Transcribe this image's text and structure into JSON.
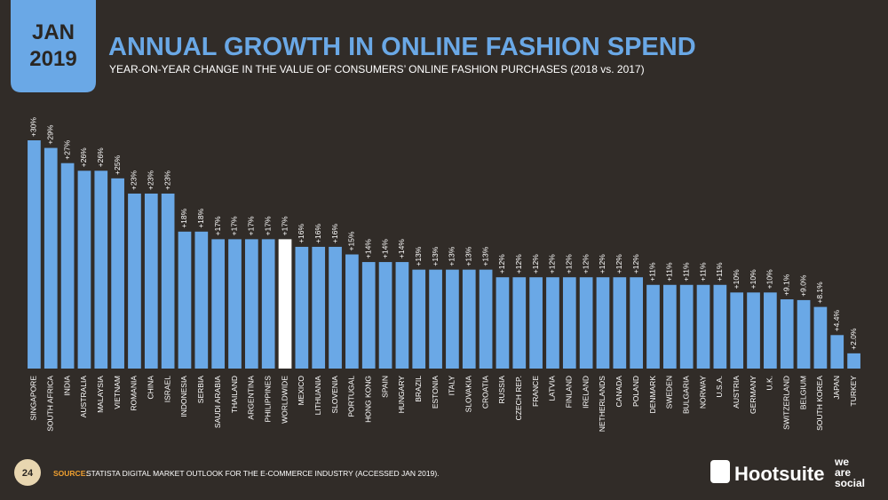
{
  "badge": {
    "month": "JAN",
    "year": "2019"
  },
  "chart_data": {
    "type": "bar",
    "title": "ANNUAL GROWTH IN ONLINE FASHION SPEND",
    "subtitle": "YEAR-ON-YEAR CHANGE IN THE VALUE OF CONSUMERS’ ONLINE FASHION PURCHASES (2018 vs. 2017)",
    "categories": [
      "SINGAPORE",
      "SOUTH AFRICA",
      "INDIA",
      "AUSTRALIA",
      "MALAYSIA",
      "VIETNAM",
      "ROMANIA",
      "CHINA",
      "ISRAEL",
      "INDONESIA",
      "SERBIA",
      "SAUDI ARABIA",
      "THAILAND",
      "ARGENTINA",
      "PHILIPPINES",
      "WORLDWIDE",
      "MEXICO",
      "LITHUANIA",
      "SLOVENIA",
      "PORTUGAL",
      "HONG KONG",
      "SPAIN",
      "HUNGARY",
      "BRAZIL",
      "ESTONIA",
      "ITALY",
      "SLOVAKIA",
      "CROATIA",
      "RUSSIA",
      "CZECH REP.",
      "FRANCE",
      "LATVIA",
      "FINLAND",
      "IRELAND",
      "NETHERLANDS",
      "CANADA",
      "POLAND",
      "DENMARK",
      "SWEDEN",
      "BULGARIA",
      "NORWAY",
      "U.S.A.",
      "AUSTRIA",
      "GERMANY",
      "U.K.",
      "SWITZERLAND",
      "BELGIUM",
      "SOUTH KOREA",
      "JAPAN",
      "TURKEY"
    ],
    "values": [
      30,
      29,
      27,
      26,
      26,
      25,
      23,
      23,
      23,
      18,
      18,
      17,
      17,
      17,
      17,
      17,
      16,
      16,
      16,
      15,
      14,
      14,
      14,
      13,
      13,
      13,
      13,
      13,
      12,
      12,
      12,
      12,
      12,
      12,
      12,
      12,
      12,
      11,
      11,
      11,
      11,
      11,
      10,
      10,
      10,
      9.1,
      9.0,
      8.1,
      4.4,
      2.0
    ],
    "value_labels": [
      "+30%",
      "+29%",
      "+27%",
      "+26%",
      "+26%",
      "+25%",
      "+23%",
      "+23%",
      "+23%",
      "+18%",
      "+18%",
      "+17%",
      "+17%",
      "+17%",
      "+17%",
      "+17%",
      "+16%",
      "+16%",
      "+16%",
      "+15%",
      "+14%",
      "+14%",
      "+14%",
      "+13%",
      "+13%",
      "+13%",
      "+13%",
      "+13%",
      "+12%",
      "+12%",
      "+12%",
      "+12%",
      "+12%",
      "+12%",
      "+12%",
      "+12%",
      "+12%",
      "+11%",
      "+11%",
      "+11%",
      "+11%",
      "+11%",
      "+10%",
      "+10%",
      "+10%",
      "+9.1%",
      "+9.0%",
      "+8.1%",
      "+4.4%",
      "+2.0%"
    ],
    "colors": [
      "#6aa8e6",
      "#6aa8e6",
      "#6aa8e6",
      "#6aa8e6",
      "#6aa8e6",
      "#6aa8e6",
      "#6aa8e6",
      "#6aa8e6",
      "#6aa8e6",
      "#6aa8e6",
      "#6aa8e6",
      "#6aa8e6",
      "#6aa8e6",
      "#6aa8e6",
      "#6aa8e6",
      "#ffffff",
      "#6aa8e6",
      "#6aa8e6",
      "#6aa8e6",
      "#6aa8e6",
      "#6aa8e6",
      "#6aa8e6",
      "#6aa8e6",
      "#6aa8e6",
      "#6aa8e6",
      "#6aa8e6",
      "#6aa8e6",
      "#6aa8e6",
      "#6aa8e6",
      "#6aa8e6",
      "#6aa8e6",
      "#6aa8e6",
      "#6aa8e6",
      "#6aa8e6",
      "#6aa8e6",
      "#6aa8e6",
      "#6aa8e6",
      "#6aa8e6",
      "#6aa8e6",
      "#6aa8e6",
      "#6aa8e6",
      "#6aa8e6",
      "#6aa8e6",
      "#6aa8e6",
      "#6aa8e6",
      "#6aa8e6",
      "#6aa8e6",
      "#6aa8e6",
      "#6aa8e6",
      "#6aa8e6"
    ]
  },
  "footer": {
    "page": "24",
    "source_label": "SOURCE:",
    "source": "STATISTA DIGITAL MARKET OUTLOOK FOR THE E-COMMERCE INDUSTRY (ACCESSED JAN 2019)."
  },
  "logos": {
    "hootsuite": "Hootsuite",
    "was": [
      "we",
      "are",
      "social"
    ]
  }
}
